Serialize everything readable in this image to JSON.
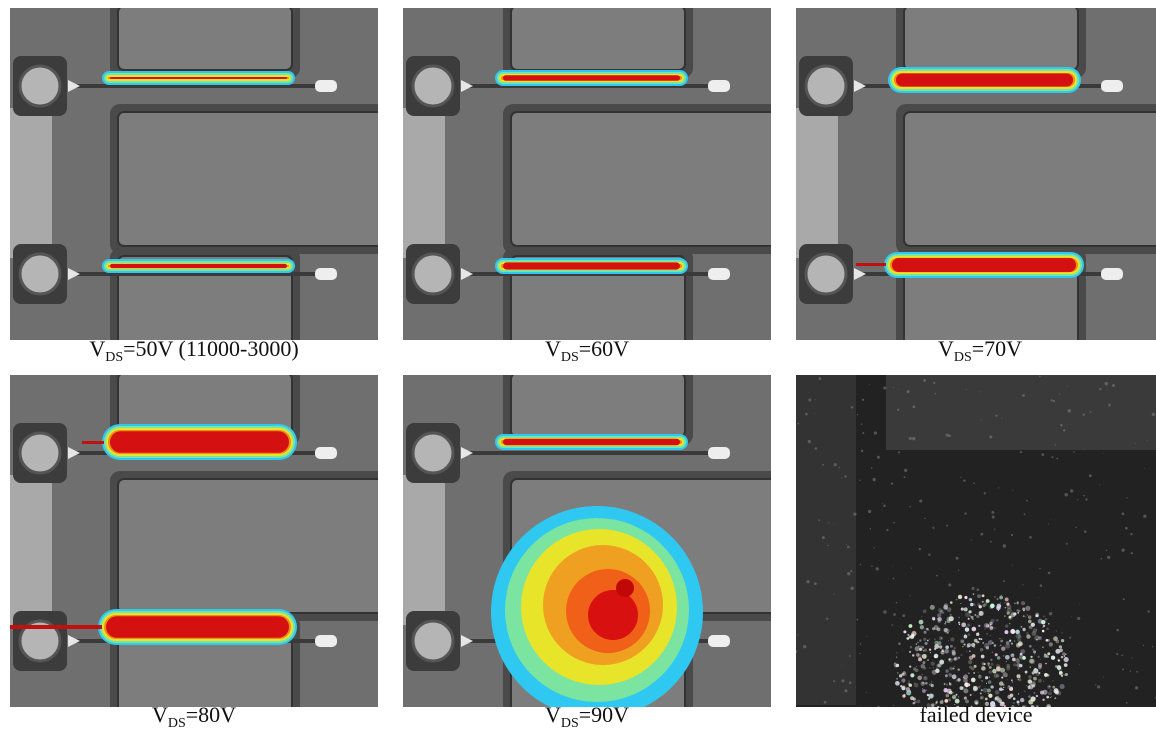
{
  "panels": [
    {
      "caption": {
        "main": "V",
        "sub": "DS",
        "rest": "=50V (11000-3000)"
      }
    },
    {
      "caption": {
        "main": "V",
        "sub": "DS",
        "rest": "=60V"
      }
    },
    {
      "caption": {
        "main": "V",
        "sub": "DS",
        "rest": "=70V"
      }
    },
    {
      "caption": {
        "main": "V",
        "sub": "DS",
        "rest": "=80V"
      }
    },
    {
      "caption": {
        "main": "V",
        "sub": "DS",
        "rest": "=90V"
      }
    },
    {
      "caption": {
        "text": "failed device"
      }
    }
  ]
}
